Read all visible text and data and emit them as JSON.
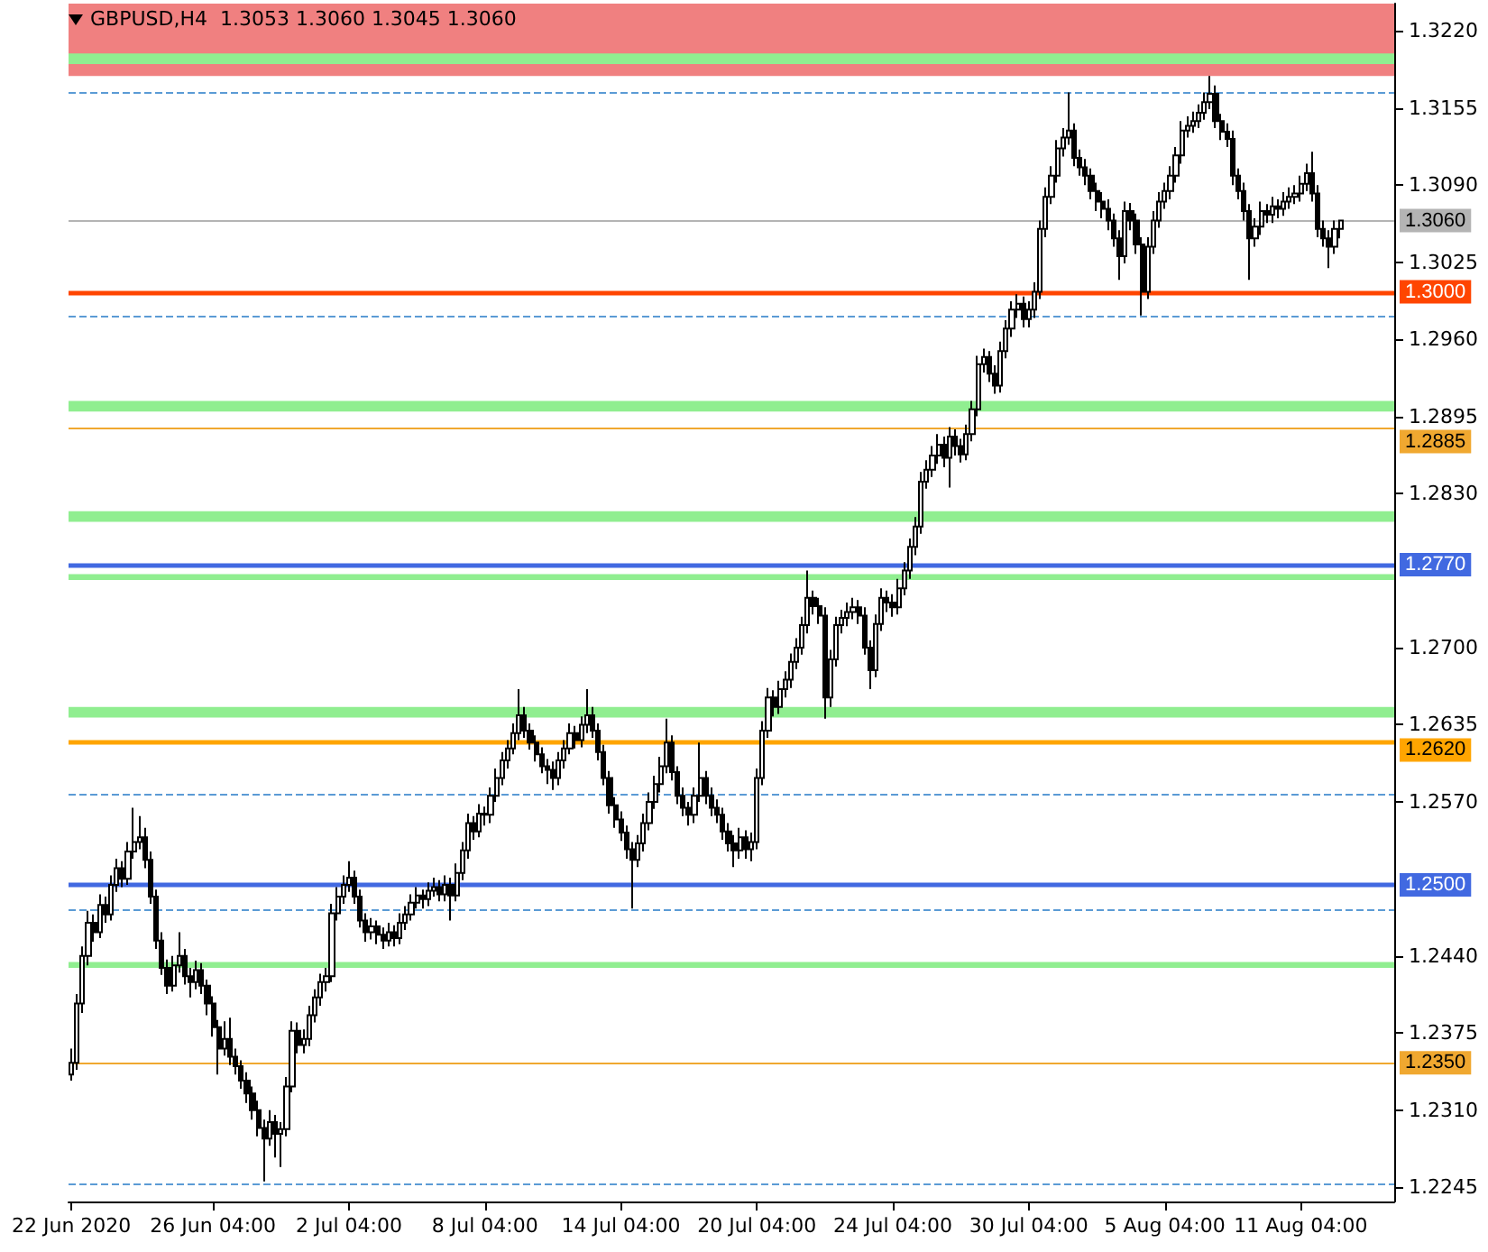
{
  "chart_data": {
    "type": "candlestick",
    "title": "GBPUSD,H4  1.3053 1.3060 1.3045 1.3060",
    "categories": [
      "22 Jun 2020",
      null,
      null,
      null,
      null,
      null,
      null,
      null,
      null,
      null,
      null,
      null,
      null,
      null,
      null,
      null,
      null,
      null,
      null,
      null,
      null,
      null,
      null,
      null,
      null,
      "26 Jun 04:00",
      null,
      null,
      null,
      null,
      null,
      null,
      null,
      null,
      null,
      null,
      null,
      null,
      null,
      null,
      null,
      null,
      null,
      null,
      null,
      null,
      null,
      null,
      null,
      "2 Jul 04:00",
      null,
      null,
      null,
      null,
      null,
      null,
      null,
      null,
      null,
      null,
      null,
      null,
      null,
      null,
      null,
      null,
      null,
      null,
      null,
      null,
      null,
      null,
      null,
      "8 Jul 04:00",
      null,
      null,
      null,
      null,
      null,
      null,
      null,
      null,
      null,
      null,
      null,
      null,
      null,
      null,
      null,
      null,
      null,
      null,
      null,
      null,
      null,
      null,
      null,
      "14 Jul 04:00",
      null,
      null,
      null,
      null,
      null,
      null,
      null,
      null,
      null,
      null,
      null,
      null,
      null,
      null,
      null,
      null,
      null,
      null,
      null,
      null,
      null,
      null,
      null,
      "20 Jul 04:00",
      null,
      null,
      null,
      null,
      null,
      null,
      null,
      null,
      null,
      null,
      null,
      null,
      null,
      null,
      null,
      null,
      null,
      null,
      null,
      null,
      null,
      null,
      null,
      "24 Jul 04:00",
      null,
      null,
      null,
      null,
      null,
      null,
      null,
      null,
      null,
      null,
      null,
      null,
      null,
      null,
      null,
      null,
      null,
      null,
      null,
      null,
      null,
      null,
      null,
      "30 Jul 04:00",
      null,
      null,
      null,
      null,
      null,
      null,
      null,
      null,
      null,
      null,
      null,
      null,
      null,
      null,
      null,
      null,
      null,
      null,
      null,
      null,
      null,
      null,
      null,
      "5 Aug 04:00",
      null,
      null,
      null,
      null,
      null,
      null,
      null,
      null,
      null,
      null,
      null,
      null,
      null,
      null,
      null,
      null,
      null,
      null,
      null,
      null,
      null,
      null,
      null,
      "11 Aug 04:00",
      null,
      null,
      null,
      null,
      null,
      null,
      null
    ],
    "ohlc": [
      [
        1.234,
        1.2362,
        1.2335,
        1.235
      ],
      [
        1.235,
        1.2408,
        1.2344,
        1.24
      ],
      [
        1.24,
        1.2448,
        1.2392,
        1.244
      ],
      [
        1.244,
        1.2478,
        1.2432,
        1.2468
      ],
      [
        1.2468,
        1.2475,
        1.2452,
        1.246
      ],
      [
        1.246,
        1.2492,
        1.2455,
        1.2483
      ],
      [
        1.2483,
        1.249,
        1.2468,
        1.2475
      ],
      [
        1.2475,
        1.2508,
        1.247,
        1.25
      ],
      [
        1.25,
        1.2522,
        1.2494,
        1.2514
      ],
      [
        1.2514,
        1.252,
        1.2498,
        1.2505
      ],
      [
        1.2505,
        1.2536,
        1.25,
        1.2528
      ],
      [
        1.2528,
        1.2565,
        1.2522,
        1.2536
      ],
      [
        1.2536,
        1.2558,
        1.253,
        1.254
      ],
      [
        1.254,
        1.2548,
        1.2514,
        1.2521
      ],
      [
        1.2521,
        1.2528,
        1.2484,
        1.249
      ],
      [
        1.249,
        1.2496,
        1.2446,
        1.2453
      ],
      [
        1.2453,
        1.246,
        1.2424,
        1.243
      ],
      [
        1.243,
        1.2437,
        1.2408,
        1.2415
      ],
      [
        1.2415,
        1.244,
        1.241,
        1.2432
      ],
      [
        1.2432,
        1.246,
        1.2426,
        1.244
      ],
      [
        1.244,
        1.2446,
        1.2416,
        1.2423
      ],
      [
        1.2423,
        1.243,
        1.2405,
        1.2418
      ],
      [
        1.2418,
        1.2436,
        1.2412,
        1.2428
      ],
      [
        1.2428,
        1.2434,
        1.2408,
        1.2415
      ],
      [
        1.2415,
        1.242,
        1.239,
        1.24
      ],
      [
        1.24,
        1.2406,
        1.2372,
        1.238
      ],
      [
        1.238,
        1.2386,
        1.234,
        1.2362
      ],
      [
        1.2362,
        1.2385,
        1.2356,
        1.237
      ],
      [
        1.237,
        1.2388,
        1.2348,
        1.2355
      ],
      [
        1.2355,
        1.2362,
        1.234,
        1.2347
      ],
      [
        1.2347,
        1.2352,
        1.2328,
        1.2335
      ],
      [
        1.2335,
        1.2342,
        1.2316,
        1.2324
      ],
      [
        1.2324,
        1.233,
        1.2302,
        1.231
      ],
      [
        1.231,
        1.2318,
        1.2288,
        1.2295
      ],
      [
        1.2295,
        1.2302,
        1.225,
        1.2286
      ],
      [
        1.2286,
        1.231,
        1.228,
        1.23
      ],
      [
        1.23,
        1.2306,
        1.227,
        1.229
      ],
      [
        1.229,
        1.23,
        1.2262,
        1.2294
      ],
      [
        1.2294,
        1.2338,
        1.2288,
        1.233
      ],
      [
        1.233,
        1.2385,
        1.2325,
        1.2377
      ],
      [
        1.2377,
        1.2384,
        1.2358,
        1.2365
      ],
      [
        1.2365,
        1.2378,
        1.2358,
        1.237
      ],
      [
        1.237,
        1.2398,
        1.2364,
        1.239
      ],
      [
        1.239,
        1.2412,
        1.2384,
        1.2405
      ],
      [
        1.2405,
        1.2425,
        1.2398,
        1.2418
      ],
      [
        1.2418,
        1.243,
        1.241,
        1.2423
      ],
      [
        1.2423,
        1.2484,
        1.2418,
        1.2476
      ],
      [
        1.2476,
        1.2498,
        1.247,
        1.249
      ],
      [
        1.249,
        1.2508,
        1.2484,
        1.25
      ],
      [
        1.25,
        1.252,
        1.2494,
        1.2506
      ],
      [
        1.2506,
        1.2512,
        1.2484,
        1.249
      ],
      [
        1.249,
        1.2496,
        1.2464,
        1.247
      ],
      [
        1.247,
        1.2476,
        1.2452,
        1.246
      ],
      [
        1.246,
        1.2472,
        1.2454,
        1.2465
      ],
      [
        1.2465,
        1.247,
        1.245,
        1.2458
      ],
      [
        1.2458,
        1.2464,
        1.2446,
        1.2453
      ],
      [
        1.2453,
        1.2468,
        1.2448,
        1.246
      ],
      [
        1.246,
        1.2466,
        1.2448,
        1.2455
      ],
      [
        1.2455,
        1.2476,
        1.245,
        1.2468
      ],
      [
        1.2468,
        1.2482,
        1.2462,
        1.2475
      ],
      [
        1.2475,
        1.2492,
        1.247,
        1.2485
      ],
      [
        1.2485,
        1.2498,
        1.248,
        1.2491
      ],
      [
        1.2491,
        1.2496,
        1.248,
        1.2488
      ],
      [
        1.2488,
        1.2502,
        1.2482,
        1.2495
      ],
      [
        1.2495,
        1.2506,
        1.249,
        1.2498
      ],
      [
        1.2498,
        1.2504,
        1.2486,
        1.2492
      ],
      [
        1.2492,
        1.2508,
        1.2486,
        1.25
      ],
      [
        1.25,
        1.2506,
        1.247,
        1.2491
      ],
      [
        1.2491,
        1.2518,
        1.2486,
        1.251
      ],
      [
        1.251,
        1.2536,
        1.2504,
        1.2529
      ],
      [
        1.2529,
        1.256,
        1.2522,
        1.2552
      ],
      [
        1.2552,
        1.2558,
        1.2538,
        1.2545
      ],
      [
        1.2545,
        1.2568,
        1.254,
        1.256
      ],
      [
        1.256,
        1.2566,
        1.255,
        1.2559
      ],
      [
        1.2559,
        1.2582,
        1.2552,
        1.2575
      ],
      [
        1.2575,
        1.2598,
        1.257,
        1.259
      ],
      [
        1.259,
        1.2612,
        1.2584,
        1.2605
      ],
      [
        1.2605,
        1.2622,
        1.2598,
        1.2615
      ],
      [
        1.2615,
        1.2636,
        1.261,
        1.2628
      ],
      [
        1.2628,
        1.2665,
        1.2622,
        1.2643
      ],
      [
        1.2643,
        1.265,
        1.2624,
        1.263
      ],
      [
        1.263,
        1.2636,
        1.2614,
        1.262
      ],
      [
        1.262,
        1.2626,
        1.2604,
        1.261
      ],
      [
        1.261,
        1.2616,
        1.2594,
        1.26
      ],
      [
        1.26,
        1.2606,
        1.2585,
        1.2597
      ],
      [
        1.2597,
        1.2604,
        1.258,
        1.259
      ],
      [
        1.259,
        1.2612,
        1.2584,
        1.2605
      ],
      [
        1.2605,
        1.2622,
        1.2598,
        1.2615
      ],
      [
        1.2615,
        1.2636,
        1.261,
        1.2628
      ],
      [
        1.2628,
        1.2634,
        1.2615,
        1.2622
      ],
      [
        1.2622,
        1.2642,
        1.2616,
        1.2635
      ],
      [
        1.2635,
        1.2665,
        1.2628,
        1.2643
      ],
      [
        1.2643,
        1.265,
        1.2624,
        1.263
      ],
      [
        1.263,
        1.2636,
        1.2605,
        1.2612
      ],
      [
        1.2612,
        1.2618,
        1.2584,
        1.259
      ],
      [
        1.259,
        1.2596,
        1.256,
        1.2567
      ],
      [
        1.2567,
        1.2574,
        1.2548,
        1.2555
      ],
      [
        1.2555,
        1.2562,
        1.2537,
        1.2544
      ],
      [
        1.2544,
        1.255,
        1.2522,
        1.253
      ],
      [
        1.253,
        1.2536,
        1.248,
        1.2521
      ],
      [
        1.2521,
        1.2542,
        1.2515,
        1.2535
      ],
      [
        1.2535,
        1.256,
        1.2528,
        1.2552
      ],
      [
        1.2552,
        1.2578,
        1.2546,
        1.257
      ],
      [
        1.257,
        1.2592,
        1.2564,
        1.2585
      ],
      [
        1.2585,
        1.2608,
        1.2578,
        1.26
      ],
      [
        1.26,
        1.264,
        1.2594,
        1.262
      ],
      [
        1.262,
        1.2626,
        1.2588,
        1.2595
      ],
      [
        1.2595,
        1.26,
        1.2568,
        1.2575
      ],
      [
        1.2575,
        1.2582,
        1.2558,
        1.2565
      ],
      [
        1.2565,
        1.257,
        1.255,
        1.2559
      ],
      [
        1.2559,
        1.2582,
        1.2552,
        1.2575
      ],
      [
        1.2575,
        1.262,
        1.257,
        1.259
      ],
      [
        1.259,
        1.2596,
        1.2568,
        1.2575
      ],
      [
        1.2575,
        1.2582,
        1.2558,
        1.2565
      ],
      [
        1.2565,
        1.2572,
        1.2552,
        1.2559
      ],
      [
        1.2559,
        1.2565,
        1.2538,
        1.2545
      ],
      [
        1.2545,
        1.2552,
        1.2528,
        1.2535
      ],
      [
        1.2535,
        1.2542,
        1.2515,
        1.2529
      ],
      [
        1.2529,
        1.2548,
        1.2522,
        1.254
      ],
      [
        1.254,
        1.2546,
        1.2522,
        1.253
      ],
      [
        1.253,
        1.2544,
        1.252,
        1.2536
      ],
      [
        1.2536,
        1.2598,
        1.253,
        1.259
      ],
      [
        1.259,
        1.2638,
        1.2584,
        1.263
      ],
      [
        1.263,
        1.2666,
        1.2624,
        1.2658
      ],
      [
        1.2658,
        1.2664,
        1.2642,
        1.265
      ],
      [
        1.265,
        1.2672,
        1.2644,
        1.2665
      ],
      [
        1.2665,
        1.268,
        1.2658,
        1.2673
      ],
      [
        1.2673,
        1.2695,
        1.2666,
        1.2688
      ],
      [
        1.2688,
        1.2708,
        1.2682,
        1.27
      ],
      [
        1.27,
        1.2726,
        1.2694,
        1.2719
      ],
      [
        1.2719,
        1.2765,
        1.2712,
        1.2742
      ],
      [
        1.2742,
        1.2748,
        1.2728,
        1.2735
      ],
      [
        1.2735,
        1.2742,
        1.272,
        1.2727
      ],
      [
        1.2727,
        1.2734,
        1.264,
        1.2658
      ],
      [
        1.2658,
        1.2698,
        1.265,
        1.269
      ],
      [
        1.269,
        1.2726,
        1.2684,
        1.2719
      ],
      [
        1.2719,
        1.2732,
        1.2712,
        1.2725
      ],
      [
        1.2725,
        1.2738,
        1.2718,
        1.273
      ],
      [
        1.273,
        1.2742,
        1.2724,
        1.2734
      ],
      [
        1.2734,
        1.274,
        1.272,
        1.2727
      ],
      [
        1.2727,
        1.2734,
        1.2694,
        1.27
      ],
      [
        1.27,
        1.2706,
        1.2665,
        1.2681
      ],
      [
        1.2681,
        1.2728,
        1.2675,
        1.272
      ],
      [
        1.272,
        1.275,
        1.2714,
        1.2742
      ],
      [
        1.2742,
        1.2748,
        1.273,
        1.2738
      ],
      [
        1.2738,
        1.2745,
        1.2726,
        1.2734
      ],
      [
        1.2734,
        1.2758,
        1.2728,
        1.275
      ],
      [
        1.275,
        1.2772,
        1.2744,
        1.2765
      ],
      [
        1.2765,
        1.2792,
        1.2758,
        1.2785
      ],
      [
        1.2785,
        1.281,
        1.2778,
        1.2802
      ],
      [
        1.2802,
        1.2848,
        1.2796,
        1.284
      ],
      [
        1.284,
        1.2858,
        1.2834,
        1.285
      ],
      [
        1.285,
        1.287,
        1.2844,
        1.2862
      ],
      [
        1.2862,
        1.288,
        1.2855,
        1.2871
      ],
      [
        1.2871,
        1.2878,
        1.2852,
        1.286
      ],
      [
        1.286,
        1.2886,
        1.2835,
        1.2878
      ],
      [
        1.2878,
        1.2884,
        1.2862,
        1.287
      ],
      [
        1.287,
        1.2876,
        1.2856,
        1.2863
      ],
      [
        1.2863,
        1.2888,
        1.2858,
        1.288
      ],
      [
        1.288,
        1.2908,
        1.2874,
        1.2901
      ],
      [
        1.2901,
        1.2946,
        1.2895,
        1.2939
      ],
      [
        1.2939,
        1.2952,
        1.2932,
        1.2945
      ],
      [
        1.2945,
        1.295,
        1.2924,
        1.2931
      ],
      [
        1.2931,
        1.2938,
        1.2914,
        1.2921
      ],
      [
        1.2921,
        1.2958,
        1.2915,
        1.295
      ],
      [
        1.295,
        1.2976,
        1.2944,
        1.2969
      ],
      [
        1.2969,
        1.2992,
        1.2962,
        1.2985
      ],
      [
        1.2985,
        1.2998,
        1.2978,
        1.299
      ],
      [
        1.299,
        1.2996,
        1.297,
        1.2977
      ],
      [
        1.2977,
        1.2992,
        1.297,
        1.2985
      ],
      [
        1.2985,
        1.3008,
        1.2978,
        1.3
      ],
      [
        1.3,
        1.306,
        1.2994,
        1.3053
      ],
      [
        1.3053,
        1.3088,
        1.3046,
        1.308
      ],
      [
        1.308,
        1.3106,
        1.3074,
        1.3098
      ],
      [
        1.3098,
        1.3128,
        1.3092,
        1.3121
      ],
      [
        1.3121,
        1.3138,
        1.3114,
        1.313
      ],
      [
        1.313,
        1.3168,
        1.3124,
        1.3136
      ],
      [
        1.3136,
        1.3142,
        1.3106,
        1.3113
      ],
      [
        1.3113,
        1.312,
        1.3098,
        1.3105
      ],
      [
        1.3105,
        1.3112,
        1.309,
        1.3098
      ],
      [
        1.3098,
        1.3104,
        1.3078,
        1.3085
      ],
      [
        1.3085,
        1.3092,
        1.3068,
        1.3076
      ],
      [
        1.3076,
        1.3084,
        1.3062,
        1.307
      ],
      [
        1.307,
        1.3078,
        1.3052,
        1.306
      ],
      [
        1.306,
        1.3066,
        1.3038,
        1.3045
      ],
      [
        1.3045,
        1.3052,
        1.301,
        1.303
      ],
      [
        1.303,
        1.3076,
        1.3024,
        1.3068
      ],
      [
        1.3068,
        1.3075,
        1.3052,
        1.306
      ],
      [
        1.306,
        1.3066,
        1.3032,
        1.304
      ],
      [
        1.304,
        1.3046,
        1.298,
        1.3
      ],
      [
        1.3,
        1.3046,
        1.2994,
        1.3038
      ],
      [
        1.3038,
        1.3068,
        1.3032,
        1.306
      ],
      [
        1.306,
        1.3084,
        1.3054,
        1.3076
      ],
      [
        1.3076,
        1.3092,
        1.307,
        1.3085
      ],
      [
        1.3085,
        1.3106,
        1.3078,
        1.3098
      ],
      [
        1.3098,
        1.3122,
        1.3092,
        1.3115
      ],
      [
        1.3115,
        1.3144,
        1.3108,
        1.3136
      ],
      [
        1.3136,
        1.3148,
        1.313,
        1.314
      ],
      [
        1.314,
        1.3152,
        1.3134,
        1.3144
      ],
      [
        1.3144,
        1.3158,
        1.3138,
        1.3151
      ],
      [
        1.3151,
        1.3168,
        1.3145,
        1.316
      ],
      [
        1.316,
        1.3182,
        1.3154,
        1.3167
      ],
      [
        1.3167,
        1.3174,
        1.3138,
        1.3144
      ],
      [
        1.3144,
        1.315,
        1.3128,
        1.3135
      ],
      [
        1.3135,
        1.3142,
        1.3122,
        1.3129
      ],
      [
        1.3129,
        1.3136,
        1.309,
        1.3098
      ],
      [
        1.3098,
        1.3104,
        1.3078,
        1.3085
      ],
      [
        1.3085,
        1.3092,
        1.306,
        1.3068
      ],
      [
        1.3068,
        1.3074,
        1.301,
        1.3045
      ],
      [
        1.3045,
        1.3062,
        1.3038,
        1.3055
      ],
      [
        1.3055,
        1.3076,
        1.3048,
        1.3068
      ],
      [
        1.3068,
        1.3074,
        1.3058,
        1.3065
      ],
      [
        1.3065,
        1.308,
        1.3058,
        1.3072
      ],
      [
        1.3072,
        1.3078,
        1.3062,
        1.307
      ],
      [
        1.307,
        1.3084,
        1.3064,
        1.3076
      ],
      [
        1.3076,
        1.3088,
        1.307,
        1.308
      ],
      [
        1.308,
        1.309,
        1.3074,
        1.3083
      ],
      [
        1.3083,
        1.3098,
        1.3076,
        1.3091
      ],
      [
        1.3091,
        1.3108,
        1.3085,
        1.31
      ],
      [
        1.31,
        1.3118,
        1.3076,
        1.3083
      ],
      [
        1.3083,
        1.309,
        1.3046,
        1.3053
      ],
      [
        1.3053,
        1.306,
        1.3038,
        1.3045
      ],
      [
        1.3045,
        1.3052,
        1.302,
        1.3038
      ],
      [
        1.3038,
        1.306,
        1.3032,
        1.3053
      ],
      [
        1.3053,
        1.306,
        1.3045,
        1.306
      ]
    ],
    "ylim": [
      1.2233,
      1.3243
    ],
    "yticks": [
      {
        "value": 1.322,
        "label": "1.3220"
      },
      {
        "value": 1.3155,
        "label": "1.3155"
      },
      {
        "value": 1.309,
        "label": "1.3090"
      },
      {
        "value": 1.3025,
        "label": "1.3025"
      },
      {
        "value": 1.296,
        "label": "1.2960"
      },
      {
        "value": 1.2895,
        "label": "1.2895"
      },
      {
        "value": 1.283,
        "label": "1.2830"
      },
      {
        "value": 1.27,
        "label": "1.2700"
      },
      {
        "value": 1.2635,
        "label": "1.2635"
      },
      {
        "value": 1.257,
        "label": "1.2570"
      },
      {
        "value": 1.244,
        "label": "1.2440"
      },
      {
        "value": 1.2375,
        "label": "1.2375"
      },
      {
        "value": 1.231,
        "label": "1.2310"
      },
      {
        "value": 1.2245,
        "label": "1.2245"
      }
    ],
    "ref_lines": [
      {
        "axis": "y",
        "value": 1.306,
        "label": "1.3060",
        "color": "#b4b4b4"
      },
      {
        "axis": "y",
        "value": 1.3,
        "label": "1.3000",
        "color": "#ff4500"
      },
      {
        "axis": "y",
        "value": 1.2885,
        "label": "1.2885",
        "color": "#f0a830"
      },
      {
        "axis": "y",
        "value": 1.277,
        "label": "1.2770",
        "color": "#4169e1"
      },
      {
        "axis": "y",
        "value": 1.262,
        "label": "1.2620",
        "color": "#ffa500"
      },
      {
        "axis": "y",
        "value": 1.25,
        "label": "1.2500",
        "color": "#4169e1"
      },
      {
        "axis": "y",
        "value": 1.235,
        "label": "1.2350",
        "color": "#f0a830"
      },
      {
        "axis": "y",
        "value": 1.3168,
        "color": "#5b9bd5",
        "line_style": "dashed"
      },
      {
        "axis": "y",
        "value": 1.298,
        "color": "#5b9bd5",
        "line_style": "dashed"
      },
      {
        "axis": "y",
        "value": 1.2577,
        "color": "#5b9bd5",
        "line_style": "dashed"
      },
      {
        "axis": "y",
        "value": 1.2479,
        "color": "#5b9bd5",
        "line_style": "dashed"
      },
      {
        "axis": "y",
        "value": 1.2248,
        "color": "#5b9bd5",
        "line_style": "dashed"
      }
    ],
    "bands": [
      {
        "axis": "y",
        "from": 1.3182,
        "to": 1.3243,
        "color": "#f08080"
      },
      {
        "axis": "y",
        "from": 1.3192,
        "to": 1.3201,
        "color": "#90ee90"
      },
      {
        "axis": "y",
        "from": 1.2899,
        "to": 1.2908,
        "color": "#90ee90"
      },
      {
        "axis": "y",
        "from": 1.2806,
        "to": 1.2815,
        "color": "#90ee90"
      },
      {
        "axis": "y",
        "from": 1.2757,
        "to": 1.2762,
        "color": "#90ee90"
      },
      {
        "axis": "y",
        "from": 1.2641,
        "to": 1.265,
        "color": "#90ee90"
      },
      {
        "axis": "y",
        "from": 1.243,
        "to": 1.2435,
        "color": "#90ee90"
      }
    ]
  }
}
